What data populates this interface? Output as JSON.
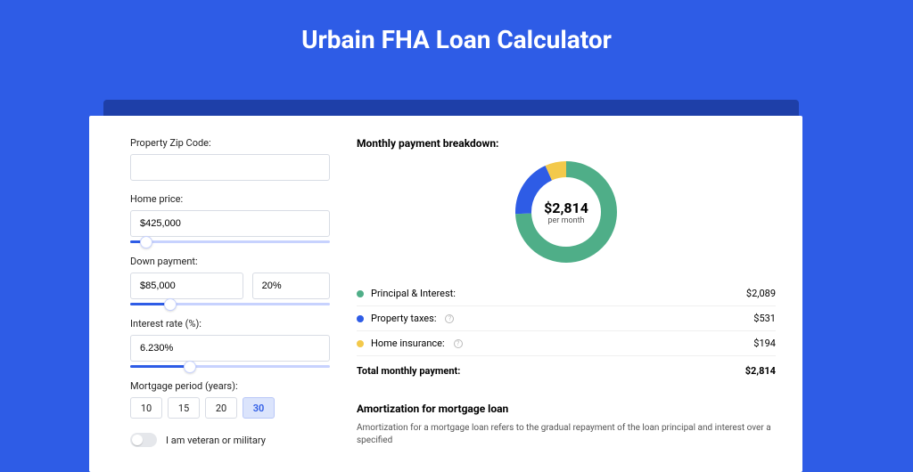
{
  "page": {
    "title": "Urbain FHA Loan Calculator",
    "background_color": "#2e5ce6",
    "shadow_color": "#1e3fa8"
  },
  "form": {
    "zip": {
      "label": "Property Zip Code:",
      "value": ""
    },
    "home_price": {
      "label": "Home price:",
      "value": "$425,000",
      "slider_pct": 8
    },
    "down_payment": {
      "label": "Down payment:",
      "amount": "$85,000",
      "percent": "20%",
      "slider_pct": 20
    },
    "interest_rate": {
      "label": "Interest rate (%):",
      "value": "6.230%",
      "slider_pct": 30
    },
    "mortgage_period": {
      "label": "Mortgage period (years):",
      "options": [
        "10",
        "15",
        "20",
        "30"
      ],
      "selected": "30"
    },
    "veteran": {
      "label": "I am veteran or military",
      "checked": false
    }
  },
  "breakdown": {
    "title": "Monthly payment breakdown:",
    "donut": {
      "amount": "$2,814",
      "sub": "per month",
      "slices": [
        {
          "key": "principal_interest",
          "value": 2089,
          "color": "#4fae88"
        },
        {
          "key": "property_taxes",
          "value": 531,
          "color": "#2e5ce6"
        },
        {
          "key": "home_insurance",
          "value": 194,
          "color": "#f3c94b"
        }
      ],
      "stroke_width": 18
    },
    "rows": [
      {
        "label": "Principal & Interest:",
        "value": "$2,089",
        "color": "#4fae88",
        "info": false
      },
      {
        "label": "Property taxes:",
        "value": "$531",
        "color": "#2e5ce6",
        "info": true
      },
      {
        "label": "Home insurance:",
        "value": "$194",
        "color": "#f3c94b",
        "info": true
      }
    ],
    "total": {
      "label": "Total monthly payment:",
      "value": "$2,814"
    }
  },
  "amortization": {
    "title": "Amortization for mortgage loan",
    "desc": "Amortization for a mortgage loan refers to the gradual repayment of the loan principal and interest over a specified"
  }
}
